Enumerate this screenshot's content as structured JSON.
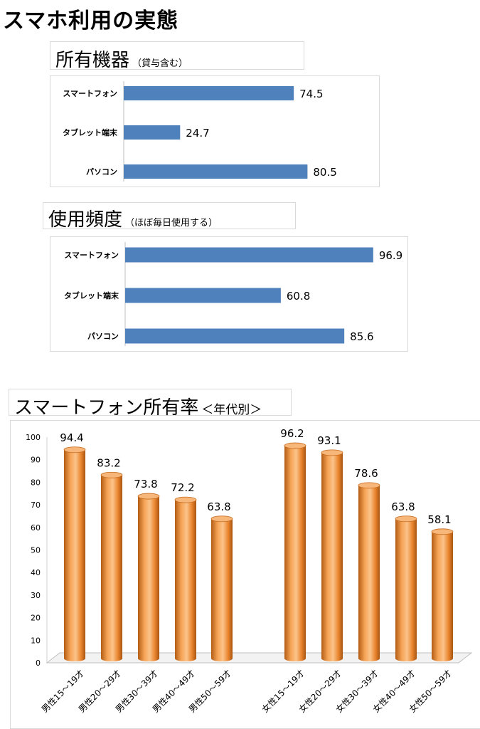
{
  "page_title": "スマホ利用の実態",
  "sections": {
    "ownership": {
      "title": "所有機器",
      "subtitle": "（貸与含む）"
    },
    "frequency": {
      "title": "使用頻度",
      "subtitle": "（ほぼ毎日使用する）"
    },
    "age": {
      "title": "スマートフォン所有率",
      "subtitle": "＜年代別＞"
    }
  },
  "chart_data": [
    {
      "type": "bar",
      "orientation": "horizontal",
      "categories": [
        "スマートフォン",
        "タブレット端末",
        "パソコン"
      ],
      "values": [
        74.5,
        24.7,
        80.5
      ],
      "xlim": [
        0,
        100
      ],
      "color": "#4f81bd"
    },
    {
      "type": "bar",
      "orientation": "horizontal",
      "categories": [
        "スマートフォン",
        "タブレット端末",
        "パソコン"
      ],
      "values": [
        96.9,
        60.8,
        85.6
      ],
      "xlim": [
        0,
        100
      ],
      "color": "#4f81bd"
    },
    {
      "type": "bar",
      "style": "3d-cylinder",
      "categories": [
        "男性15～19才",
        "男性20～29才",
        "男性30～39才",
        "男性40～49才",
        "男性50～59才",
        "女性15～19才",
        "女性20～29才",
        "女性30～39才",
        "女性40～49才",
        "女性50～59才"
      ],
      "values": [
        94.4,
        83.2,
        73.8,
        72.2,
        63.8,
        96.2,
        93.1,
        78.6,
        63.8,
        58.1
      ],
      "ylim": [
        0,
        100
      ],
      "yticks": [
        0,
        10,
        20,
        30,
        40,
        50,
        60,
        70,
        80,
        90,
        100
      ],
      "color": "#f79646"
    }
  ]
}
